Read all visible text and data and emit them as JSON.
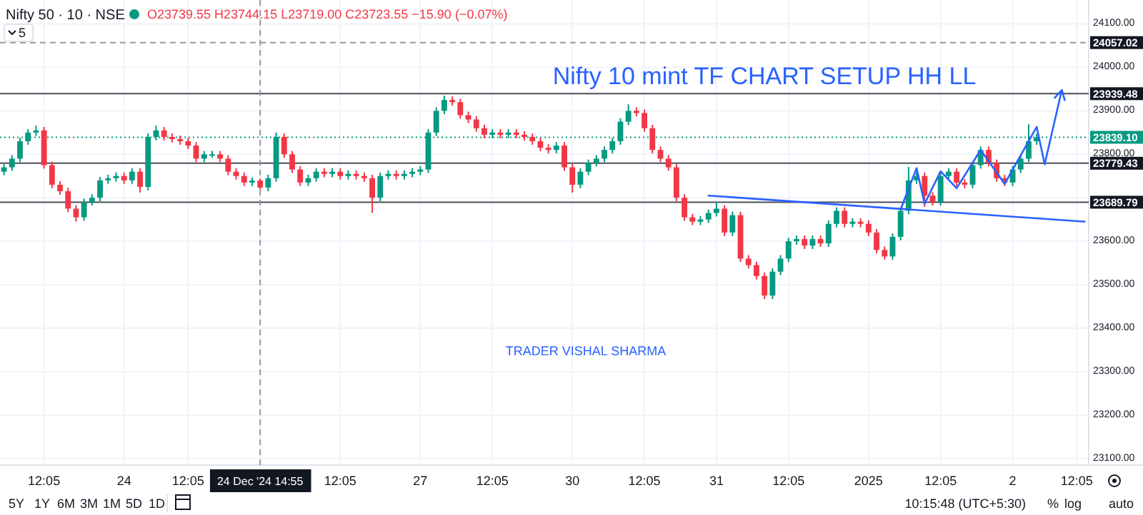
{
  "chart_data": {
    "type": "candlestick",
    "title": "Nifty 10 mint TF CHART SETUP HH LL",
    "annotations": [
      "Nifty 50 · 10 · NSE",
      "O23739.55 H23744.15 L23719.00 C23723.55 −15.90 (−0.07%)",
      "5",
      "TRADER VISHAL SHARMA",
      "5Y",
      "1Y",
      "6M",
      "3M",
      "1M",
      "5D",
      "1D",
      "10:15:48 (UTC+5:30)",
      "%",
      "log",
      "auto"
    ],
    "categories": [
      null,
      null,
      null,
      null,
      null,
      "12:05",
      null,
      null,
      null,
      null,
      null,
      null,
      null,
      null,
      null,
      "24",
      null,
      null,
      null,
      null,
      null,
      null,
      null,
      "12:05",
      null,
      null,
      null,
      null,
      null,
      null,
      null,
      null,
      "24 Dec '24  14:55",
      null,
      null,
      null,
      null,
      null,
      null,
      null,
      null,
      null,
      "12:05",
      null,
      null,
      null,
      null,
      null,
      null,
      null,
      null,
      null,
      "27",
      null,
      null,
      null,
      null,
      null,
      null,
      null,
      null,
      "12:05",
      null,
      null,
      null,
      null,
      null,
      null,
      null,
      null,
      null,
      "30",
      null,
      null,
      null,
      null,
      null,
      null,
      null,
      null,
      "12:05",
      null,
      null,
      null,
      null,
      null,
      null,
      null,
      null,
      "31",
      null,
      null,
      null,
      null,
      null,
      null,
      null,
      null,
      "12:05",
      null,
      null,
      null,
      null,
      null,
      null,
      null,
      null,
      null,
      "2025",
      null,
      null,
      null,
      null,
      null,
      null,
      null,
      null,
      "12:05",
      null,
      null,
      null,
      null,
      null,
      null,
      null,
      null,
      "2",
      null,
      null,
      null,
      null,
      null,
      null,
      null,
      "12:05",
      null
    ],
    "ohlc": [
      [
        23760,
        23778,
        23752,
        23770
      ],
      [
        23770,
        23798,
        23762,
        23790
      ],
      [
        23790,
        23838,
        23782,
        23830
      ],
      [
        23830,
        23858,
        23822,
        23850
      ],
      [
        23850,
        23866,
        23842,
        23855
      ],
      [
        23855,
        23863,
        23767,
        23775
      ],
      [
        23775,
        23783,
        23722,
        23730
      ],
      [
        23730,
        23738,
        23707,
        23715
      ],
      [
        23715,
        23723,
        23667,
        23675
      ],
      [
        23675,
        23683,
        23645,
        23655
      ],
      [
        23655,
        23698,
        23647,
        23690
      ],
      [
        23690,
        23708,
        23682,
        23700
      ],
      [
        23700,
        23748,
        23692,
        23740
      ],
      [
        23740,
        23753,
        23732,
        23745
      ],
      [
        23745,
        23758,
        23737,
        23750
      ],
      [
        23750,
        23758,
        23732,
        23740
      ],
      [
        23740,
        23768,
        23732,
        23760
      ],
      [
        23760,
        23768,
        23712,
        23725
      ],
      [
        23725,
        23848,
        23717,
        23840
      ],
      [
        23840,
        23866,
        23832,
        23855
      ],
      [
        23855,
        23863,
        23832,
        23840
      ],
      [
        23840,
        23848,
        23827,
        23835
      ],
      [
        23835,
        23843,
        23822,
        23830
      ],
      [
        23830,
        23838,
        23812,
        23820
      ],
      [
        23820,
        23828,
        23782,
        23790
      ],
      [
        23790,
        23808,
        23782,
        23800
      ],
      [
        23800,
        23808,
        23792,
        23800
      ],
      [
        23800,
        23808,
        23782,
        23790
      ],
      [
        23790,
        23798,
        23752,
        23760
      ],
      [
        23760,
        23768,
        23742,
        23750
      ],
      [
        23750,
        23758,
        23727,
        23735
      ],
      [
        23735,
        23747,
        23727,
        23739.55
      ],
      [
        23739.55,
        23744.15,
        23719,
        23723.55
      ],
      [
        23723.55,
        23753,
        23715,
        23745
      ],
      [
        23745,
        23850,
        23737,
        23840
      ],
      [
        23840,
        23848,
        23792,
        23800
      ],
      [
        23800,
        23808,
        23757,
        23765
      ],
      [
        23765,
        23773,
        23727,
        23735
      ],
      [
        23735,
        23753,
        23727,
        23745
      ],
      [
        23745,
        23768,
        23737,
        23760
      ],
      [
        23760,
        23768,
        23747,
        23755
      ],
      [
        23755,
        23768,
        23747,
        23760
      ],
      [
        23760,
        23768,
        23742,
        23750
      ],
      [
        23750,
        23763,
        23742,
        23755
      ],
      [
        23755,
        23763,
        23742,
        23750
      ],
      [
        23750,
        23758,
        23737,
        23745
      ],
      [
        23745,
        23753,
        23665,
        23700
      ],
      [
        23700,
        23758,
        23692,
        23750
      ],
      [
        23750,
        23763,
        23742,
        23755
      ],
      [
        23755,
        23763,
        23742,
        23750
      ],
      [
        23750,
        23763,
        23742,
        23755
      ],
      [
        23755,
        23768,
        23747,
        23760
      ],
      [
        23760,
        23773,
        23752,
        23765
      ],
      [
        23765,
        23858,
        23757,
        23850
      ],
      [
        23850,
        23908,
        23842,
        23900
      ],
      [
        23900,
        23935,
        23892,
        23925
      ],
      [
        23925,
        23933,
        23912,
        23920
      ],
      [
        23920,
        23928,
        23882,
        23890
      ],
      [
        23890,
        23898,
        23872,
        23880
      ],
      [
        23880,
        23888,
        23852,
        23860
      ],
      [
        23860,
        23868,
        23837,
        23845
      ],
      [
        23845,
        23858,
        23837,
        23850
      ],
      [
        23850,
        23858,
        23837,
        23845
      ],
      [
        23845,
        23858,
        23837,
        23850
      ],
      [
        23850,
        23858,
        23837,
        23845
      ],
      [
        23845,
        23853,
        23832,
        23840
      ],
      [
        23840,
        23848,
        23822,
        23830
      ],
      [
        23830,
        23838,
        23807,
        23815
      ],
      [
        23815,
        23823,
        23802,
        23810
      ],
      [
        23810,
        23828,
        23802,
        23820
      ],
      [
        23820,
        23828,
        23762,
        23770
      ],
      [
        23770,
        23778,
        23712,
        23730
      ],
      [
        23730,
        23768,
        23722,
        23760
      ],
      [
        23760,
        23788,
        23752,
        23780
      ],
      [
        23780,
        23798,
        23772,
        23790
      ],
      [
        23790,
        23818,
        23782,
        23810
      ],
      [
        23810,
        23838,
        23802,
        23830
      ],
      [
        23830,
        23883,
        23822,
        23875
      ],
      [
        23875,
        23915,
        23867,
        23900
      ],
      [
        23900,
        23908,
        23887,
        23895
      ],
      [
        23895,
        23903,
        23852,
        23860
      ],
      [
        23860,
        23868,
        23802,
        23810
      ],
      [
        23810,
        23818,
        23782,
        23790
      ],
      [
        23790,
        23798,
        23762,
        23770
      ],
      [
        23770,
        23778,
        23692,
        23700
      ],
      [
        23700,
        23708,
        23647,
        23655
      ],
      [
        23655,
        23663,
        23637,
        23645
      ],
      [
        23645,
        23658,
        23637,
        23650
      ],
      [
        23650,
        23673,
        23642,
        23665
      ],
      [
        23665,
        23690,
        23657,
        23675
      ],
      [
        23675,
        23683,
        23612,
        23620
      ],
      [
        23620,
        23668,
        23612,
        23660
      ],
      [
        23660,
        23668,
        23552,
        23560
      ],
      [
        23560,
        23568,
        23537,
        23545
      ],
      [
        23545,
        23553,
        23512,
        23520
      ],
      [
        23520,
        23528,
        23467,
        23475
      ],
      [
        23475,
        23538,
        23467,
        23530
      ],
      [
        23530,
        23568,
        23522,
        23560
      ],
      [
        23560,
        23608,
        23552,
        23600
      ],
      [
        23600,
        23613,
        23592,
        23605
      ],
      [
        23605,
        23613,
        23582,
        23590
      ],
      [
        23590,
        23613,
        23582,
        23605
      ],
      [
        23605,
        23613,
        23587,
        23595
      ],
      [
        23595,
        23648,
        23587,
        23640
      ],
      [
        23640,
        23678,
        23632,
        23670
      ],
      [
        23670,
        23678,
        23632,
        23640
      ],
      [
        23640,
        23653,
        23632,
        23645
      ],
      [
        23645,
        23653,
        23632,
        23640
      ],
      [
        23640,
        23648,
        23612,
        23620
      ],
      [
        23620,
        23628,
        23572,
        23580
      ],
      [
        23580,
        23588,
        23558,
        23565
      ],
      [
        23565,
        23618,
        23557,
        23610
      ],
      [
        23610,
        23678,
        23602,
        23670
      ],
      [
        23670,
        23771,
        23662,
        23740
      ],
      [
        23740,
        23758,
        23732,
        23750
      ],
      [
        23750,
        23758,
        23679,
        23705
      ],
      [
        23705,
        23713,
        23682,
        23690
      ],
      [
        23690,
        23758,
        23682,
        23750
      ],
      [
        23750,
        23768,
        23742,
        23760
      ],
      [
        23760,
        23768,
        23727,
        23735
      ],
      [
        23735,
        23743,
        23722,
        23730
      ],
      [
        23730,
        23783,
        23722,
        23775
      ],
      [
        23775,
        23818,
        23767,
        23810
      ],
      [
        23810,
        23818,
        23772,
        23780
      ],
      [
        23780,
        23788,
        23737,
        23745
      ],
      [
        23745,
        23753,
        23727,
        23735
      ],
      [
        23735,
        23773,
        23727,
        23765
      ],
      [
        23765,
        23798,
        23757,
        23790
      ],
      [
        23790,
        23869,
        23782,
        23830
      ],
      [
        23830,
        23847,
        23822,
        23839.1
      ],
      null,
      null,
      null,
      null,
      null,
      null
    ],
    "series": [
      {
        "type": "line",
        "color": "#2962ff",
        "values": [
          null,
          null,
          null,
          null,
          null,
          null,
          null,
          null,
          null,
          null,
          null,
          null,
          null,
          null,
          null,
          null,
          null,
          null,
          null,
          null,
          null,
          null,
          null,
          null,
          null,
          null,
          null,
          null,
          null,
          null,
          null,
          null,
          null,
          null,
          null,
          null,
          null,
          null,
          null,
          null,
          null,
          null,
          null,
          null,
          null,
          null,
          null,
          null,
          null,
          null,
          null,
          null,
          null,
          null,
          null,
          null,
          null,
          null,
          null,
          null,
          null,
          null,
          null,
          null,
          null,
          null,
          null,
          null,
          null,
          null,
          null,
          null,
          null,
          null,
          null,
          null,
          null,
          null,
          null,
          null,
          null,
          null,
          null,
          null,
          null,
          null,
          null,
          null,
          23705,
          null,
          null,
          null,
          null,
          null,
          null,
          null,
          null,
          null,
          null,
          null,
          null,
          null,
          null,
          null,
          null,
          null,
          null,
          null,
          null,
          null,
          null,
          null,
          null,
          null,
          null,
          null,
          null,
          null,
          null,
          null,
          null,
          null,
          null,
          null,
          null,
          null,
          null,
          null,
          null,
          null,
          null,
          null,
          null,
          null,
          null,
          23645
        ]
      },
      {
        "type": "line",
        "color": "#2962ff",
        "values": [
          null,
          null,
          null,
          null,
          null,
          null,
          null,
          null,
          null,
          null,
          null,
          null,
          null,
          null,
          null,
          null,
          null,
          null,
          null,
          null,
          null,
          null,
          null,
          null,
          null,
          null,
          null,
          null,
          null,
          null,
          null,
          null,
          null,
          null,
          null,
          null,
          null,
          null,
          null,
          null,
          null,
          null,
          null,
          null,
          null,
          null,
          null,
          null,
          null,
          null,
          null,
          null,
          null,
          null,
          null,
          null,
          null,
          null,
          null,
          null,
          null,
          null,
          null,
          null,
          null,
          null,
          null,
          null,
          null,
          null,
          null,
          null,
          null,
          null,
          null,
          null,
          null,
          null,
          null,
          null,
          null,
          null,
          null,
          null,
          null,
          null,
          null,
          null,
          null,
          null,
          null,
          null,
          null,
          null,
          null,
          null,
          null,
          null,
          null,
          null,
          null,
          null,
          null,
          null,
          null,
          null,
          null,
          null,
          null,
          null,
          null,
          null,
          23673,
          null,
          23768,
          23686,
          null,
          23761,
          null,
          23722,
          null,
          null,
          23810,
          null,
          null,
          23732,
          null,
          null,
          null,
          23863,
          23777,
          null,
          null,
          null,
          null,
          null
        ]
      }
    ],
    "ylim": [
      23085,
      24155
    ],
    "yticks": [
      {
        "value": 23100,
        "label": "23100.00"
      },
      {
        "value": 23200,
        "label": "23200.00"
      },
      {
        "value": 23300,
        "label": "23300.00"
      },
      {
        "value": 23400,
        "label": "23400.00"
      },
      {
        "value": 23500,
        "label": "23500.00"
      },
      {
        "value": 23600,
        "label": "23600.00"
      },
      {
        "value": 23700,
        "label": null
      },
      {
        "value": 23800,
        "label": "23800.00"
      },
      {
        "value": 23900,
        "label": "23900.00"
      },
      {
        "value": 24000,
        "label": "24000.00"
      },
      {
        "value": 24100,
        "label": "24100.00"
      }
    ],
    "ref_lines": [
      {
        "axis": "y",
        "value": 24057.02,
        "label": "24057.02",
        "color": "#9598a1",
        "line_style": "dashed"
      },
      {
        "axis": "y",
        "value": 23939.48,
        "label": "23939.48",
        "color": "#4a4d57",
        "line_style": "solid"
      },
      {
        "axis": "y",
        "value": 23839.1,
        "label": "23839.10",
        "color": "#089981",
        "line_style": "dotted"
      },
      {
        "axis": "y",
        "value": 23779.43,
        "label": "23779.43",
        "color": "#4a4d57",
        "line_style": "solid"
      },
      {
        "axis": "y",
        "value": 23689.79,
        "label": "23689.79",
        "color": "#4a4d57",
        "line_style": "solid"
      },
      {
        "axis": "x",
        "value": "24 Dec '24  14:55",
        "color": "#9598a1",
        "line_style": "dashed"
      }
    ],
    "grid": true
  }
}
